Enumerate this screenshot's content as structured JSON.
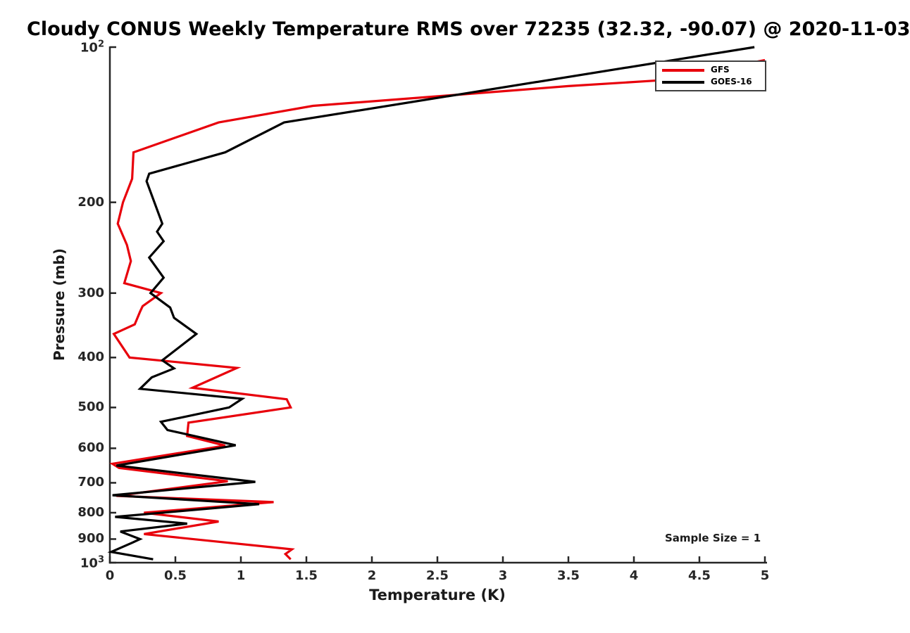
{
  "colors": {
    "axis": "#262626",
    "text": "#1a1a1a",
    "gfs_red": "#e8000b",
    "goes_black": "#000000",
    "background": "#ffffff"
  },
  "chart_data": {
    "type": "line",
    "title": "Cloudy CONUS Weekly Temperature RMS over 72235 (32.32, -90.07) @ 2020-11-03",
    "xlabel": "Temperature (K)",
    "ylabel": "Pressure (mb)",
    "annotation": "Sample Size = 1",
    "x_axis": {
      "min": 0,
      "max": 5,
      "ticks": [
        0,
        0.5,
        1,
        1.5,
        2,
        2.5,
        3,
        3.5,
        4,
        4.5,
        5
      ],
      "tick_labels": [
        "0",
        "0.5",
        "1",
        "1.5",
        "2",
        "2.5",
        "3",
        "3.5",
        "4",
        "4.5",
        "5"
      ]
    },
    "y_axis": {
      "scale": "log",
      "min": 100,
      "max": 1000,
      "inverted": true,
      "ticks": [
        100,
        200,
        300,
        400,
        500,
        600,
        700,
        800,
        900,
        1000
      ],
      "tick_labels": [
        "10^2",
        "200",
        "300",
        "400",
        "500",
        "600",
        "700",
        "800",
        "900",
        "10^3"
      ]
    },
    "grid": false,
    "legend": {
      "position": "top-right",
      "entries": [
        {
          "label": "GFS",
          "color": "#e8000b"
        },
        {
          "label": "GOES-16",
          "color": "#000000"
        }
      ]
    },
    "series": [
      {
        "name": "GFS",
        "color": "#e8000b",
        "points_format": "[temperature_rms_K, pressure_mb]",
        "points": [
          [
            5.0,
            106
          ],
          [
            4.2,
            116
          ],
          [
            3.5,
            119
          ],
          [
            2.6,
            124
          ],
          [
            1.55,
            130
          ],
          [
            0.83,
            140
          ],
          [
            0.18,
            160
          ],
          [
            0.17,
            180
          ],
          [
            0.1,
            200
          ],
          [
            0.06,
            220
          ],
          [
            0.13,
            242
          ],
          [
            0.16,
            260
          ],
          [
            0.11,
            287
          ],
          [
            0.39,
            300
          ],
          [
            0.25,
            318
          ],
          [
            0.23,
            326
          ],
          [
            0.19,
            345
          ],
          [
            0.03,
            360
          ],
          [
            0.15,
            400
          ],
          [
            0.97,
            419
          ],
          [
            0.63,
            458
          ],
          [
            1.35,
            482
          ],
          [
            1.38,
            500
          ],
          [
            0.6,
            535
          ],
          [
            0.59,
            568
          ],
          [
            0.88,
            593
          ],
          [
            0.02,
            643
          ],
          [
            0.07,
            655
          ],
          [
            0.9,
            695
          ],
          [
            0.05,
            742
          ],
          [
            1.25,
            763
          ],
          [
            0.26,
            800
          ],
          [
            0.83,
            832
          ],
          [
            0.26,
            880
          ],
          [
            1.39,
            942
          ],
          [
            1.34,
            962
          ],
          [
            1.38,
            985
          ]
        ]
      },
      {
        "name": "GOES-16",
        "color": "#000000",
        "points_format": "[temperature_rms_K, pressure_mb]",
        "points": [
          [
            4.92,
            100
          ],
          [
            1.33,
            140
          ],
          [
            0.88,
            160
          ],
          [
            0.3,
            176
          ],
          [
            0.28,
            182
          ],
          [
            0.4,
            220
          ],
          [
            0.36,
            228
          ],
          [
            0.41,
            238
          ],
          [
            0.3,
            256
          ],
          [
            0.41,
            280
          ],
          [
            0.31,
            300
          ],
          [
            0.46,
            320
          ],
          [
            0.49,
            335
          ],
          [
            0.66,
            360
          ],
          [
            0.4,
            405
          ],
          [
            0.49,
            420
          ],
          [
            0.32,
            437
          ],
          [
            0.23,
            460
          ],
          [
            1.01,
            481
          ],
          [
            0.91,
            500
          ],
          [
            0.39,
            533
          ],
          [
            0.44,
            553
          ],
          [
            0.96,
            592
          ],
          [
            0.05,
            648
          ],
          [
            1.11,
            697
          ],
          [
            0.02,
            740
          ],
          [
            1.14,
            770
          ],
          [
            0.04,
            815
          ],
          [
            0.59,
            840
          ],
          [
            0.08,
            870
          ],
          [
            0.23,
            900
          ],
          [
            0.17,
            915
          ],
          [
            0.01,
            953
          ],
          [
            0.33,
            985
          ]
        ]
      }
    ]
  }
}
